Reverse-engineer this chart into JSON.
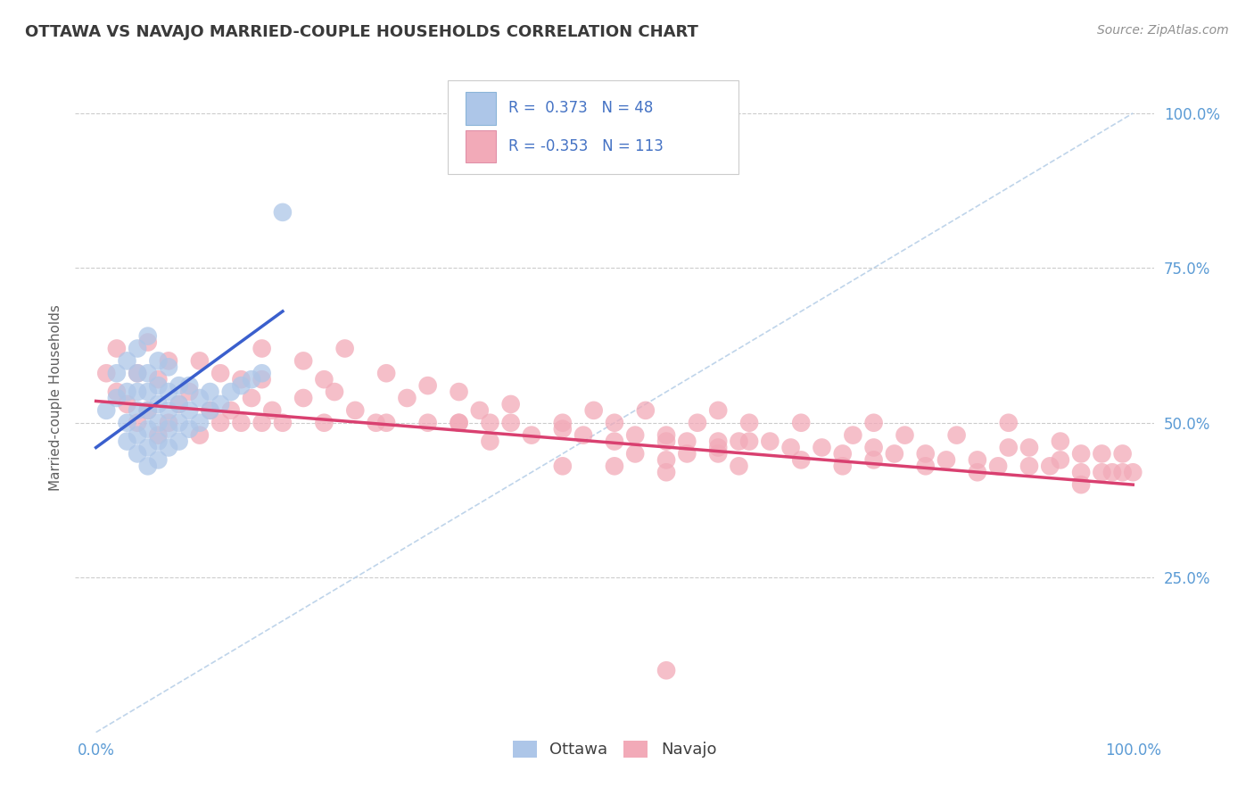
{
  "title": "OTTAWA VS NAVAJO MARRIED-COUPLE HOUSEHOLDS CORRELATION CHART",
  "source": "Source: ZipAtlas.com",
  "ylabel": "Married-couple Households",
  "legend_r_ottawa": " 0.373",
  "legend_n_ottawa": "48",
  "legend_r_navajo": "-0.353",
  "legend_n_navajo": "113",
  "xlim": [
    -0.02,
    1.02
  ],
  "ylim": [
    0.0,
    1.08
  ],
  "xtick_vals": [
    0.0,
    1.0
  ],
  "xtick_labels": [
    "0.0%",
    "100.0%"
  ],
  "ytick_vals": [
    0.25,
    0.5,
    0.75,
    1.0
  ],
  "ytick_labels": [
    "25.0%",
    "50.0%",
    "75.0%",
    "100.0%"
  ],
  "background_color": "#ffffff",
  "grid_color": "#cccccc",
  "ottawa_color": "#adc6e8",
  "navajo_color": "#f2aab8",
  "ottawa_line_color": "#3a5fcd",
  "navajo_line_color": "#d94070",
  "diagonal_line_color": "#b8d0e8",
  "title_color": "#3a3a3a",
  "source_color": "#909090",
  "tick_color": "#5b9bd5",
  "legend_text_color": "#4472c4",
  "ottawa_points_x": [
    0.01,
    0.02,
    0.02,
    0.03,
    0.03,
    0.03,
    0.03,
    0.04,
    0.04,
    0.04,
    0.04,
    0.04,
    0.04,
    0.05,
    0.05,
    0.05,
    0.05,
    0.05,
    0.05,
    0.05,
    0.06,
    0.06,
    0.06,
    0.06,
    0.06,
    0.06,
    0.07,
    0.07,
    0.07,
    0.07,
    0.07,
    0.08,
    0.08,
    0.08,
    0.08,
    0.09,
    0.09,
    0.09,
    0.1,
    0.1,
    0.11,
    0.11,
    0.12,
    0.13,
    0.14,
    0.15,
    0.16,
    0.18
  ],
  "ottawa_points_y": [
    0.52,
    0.54,
    0.58,
    0.47,
    0.5,
    0.55,
    0.6,
    0.45,
    0.48,
    0.52,
    0.55,
    0.58,
    0.62,
    0.43,
    0.46,
    0.49,
    0.52,
    0.55,
    0.58,
    0.64,
    0.44,
    0.47,
    0.5,
    0.53,
    0.56,
    0.6,
    0.46,
    0.49,
    0.52,
    0.55,
    0.59,
    0.47,
    0.5,
    0.53,
    0.56,
    0.49,
    0.52,
    0.56,
    0.5,
    0.54,
    0.52,
    0.55,
    0.53,
    0.55,
    0.56,
    0.57,
    0.58,
    0.84
  ],
  "navajo_points_x": [
    0.01,
    0.02,
    0.02,
    0.03,
    0.04,
    0.04,
    0.05,
    0.05,
    0.06,
    0.06,
    0.07,
    0.07,
    0.08,
    0.09,
    0.1,
    0.11,
    0.12,
    0.13,
    0.14,
    0.15,
    0.16,
    0.17,
    0.18,
    0.2,
    0.22,
    0.23,
    0.25,
    0.27,
    0.28,
    0.3,
    0.32,
    0.35,
    0.37,
    0.38,
    0.4,
    0.42,
    0.45,
    0.47,
    0.48,
    0.5,
    0.52,
    0.53,
    0.55,
    0.57,
    0.58,
    0.6,
    0.6,
    0.62,
    0.63,
    0.65,
    0.67,
    0.68,
    0.7,
    0.72,
    0.73,
    0.75,
    0.75,
    0.77,
    0.78,
    0.8,
    0.82,
    0.83,
    0.85,
    0.87,
    0.88,
    0.88,
    0.9,
    0.9,
    0.92,
    0.93,
    0.93,
    0.95,
    0.95,
    0.97,
    0.97,
    0.98,
    0.99,
    0.99,
    1.0,
    0.38,
    0.5,
    0.55,
    0.2,
    0.22,
    0.24,
    0.28,
    0.32,
    0.35,
    0.4,
    0.1,
    0.12,
    0.14,
    0.16,
    0.16,
    0.6,
    0.63,
    0.5,
    0.52,
    0.55,
    0.57,
    0.62,
    0.72,
    0.75,
    0.8,
    0.35,
    0.45,
    0.6,
    0.68,
    0.85,
    0.95,
    0.45,
    0.55,
    0.55
  ],
  "navajo_points_y": [
    0.58,
    0.55,
    0.62,
    0.53,
    0.5,
    0.58,
    0.52,
    0.63,
    0.48,
    0.57,
    0.5,
    0.6,
    0.53,
    0.55,
    0.48,
    0.52,
    0.5,
    0.52,
    0.5,
    0.54,
    0.5,
    0.52,
    0.5,
    0.54,
    0.5,
    0.55,
    0.52,
    0.5,
    0.5,
    0.54,
    0.5,
    0.5,
    0.52,
    0.5,
    0.5,
    0.48,
    0.5,
    0.48,
    0.52,
    0.5,
    0.48,
    0.52,
    0.48,
    0.47,
    0.5,
    0.47,
    0.52,
    0.47,
    0.5,
    0.47,
    0.46,
    0.5,
    0.46,
    0.45,
    0.48,
    0.46,
    0.5,
    0.45,
    0.48,
    0.45,
    0.44,
    0.48,
    0.44,
    0.43,
    0.46,
    0.5,
    0.43,
    0.46,
    0.43,
    0.44,
    0.47,
    0.42,
    0.45,
    0.42,
    0.45,
    0.42,
    0.42,
    0.45,
    0.42,
    0.47,
    0.47,
    0.47,
    0.6,
    0.57,
    0.62,
    0.58,
    0.56,
    0.55,
    0.53,
    0.6,
    0.58,
    0.57,
    0.57,
    0.62,
    0.45,
    0.47,
    0.43,
    0.45,
    0.44,
    0.45,
    0.43,
    0.43,
    0.44,
    0.43,
    0.5,
    0.49,
    0.46,
    0.44,
    0.42,
    0.4,
    0.43,
    0.42,
    0.1
  ],
  "navajo_trend_x0": 0.0,
  "navajo_trend_y0": 0.535,
  "navajo_trend_x1": 1.0,
  "navajo_trend_y1": 0.4,
  "ottawa_trend_x0": 0.0,
  "ottawa_trend_y0": 0.46,
  "ottawa_trend_x1": 0.18,
  "ottawa_trend_y1": 0.68
}
